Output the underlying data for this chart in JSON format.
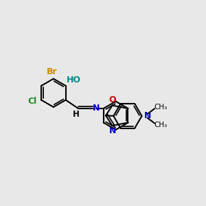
{
  "bg_color": "#e8e8e8",
  "bond_color": "#000000",
  "bond_width": 1.5,
  "atom_colors": {
    "Br": "#cc8800",
    "HO": "#008888",
    "Cl": "#228822",
    "H": "#000000",
    "N": "#0000cc",
    "O": "#cc0000",
    "C": "#000000"
  },
  "figsize": [
    3.0,
    3.0
  ],
  "dpi": 100
}
